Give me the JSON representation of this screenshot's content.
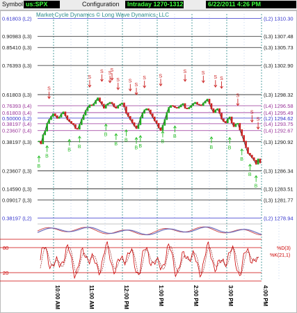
{
  "toolbar": {
    "symbol_label": "Symbol",
    "symbol_value": "us:SPX",
    "config_label": "Configuration",
    "config_value": "Intraday 1270-1312",
    "datetime_value": "6/22/2011 4:26 PM"
  },
  "watermark": "Market Cycle Dynamics © Long Wave Dynamics, LLC",
  "colors": {
    "accent_green": "#3cff3c",
    "level_blue": "#3333cc",
    "level_purple": "#993399",
    "time_teal": "#2a8a8a",
    "sell_red": "#cc2222",
    "buy_green": "#22bb22",
    "oscillator_red": "#cc0000"
  },
  "chart_data": {
    "type": "line",
    "title": "",
    "y_min": 1278.0,
    "y_max": 1311.0,
    "fib_levels": [
      {
        "left": "0.61803 (L2)",
        "right": "(L2) 1310.30",
        "price": 1310.3,
        "color": "#3333cc"
      },
      {
        "left": "0.90983 (L3)",
        "right": "(L3) 1307.48",
        "price": 1307.48,
        "color": "#222222"
      },
      {
        "left": "0.85410 (L3)",
        "right": "(L3) 1305.73",
        "price": 1305.73,
        "color": "#222222"
      },
      {
        "left": "0.76393 (L3)",
        "right": "(L3) 1302.90",
        "price": 1302.9,
        "color": "#222222"
      },
      {
        "left": "0.61803 (L3)",
        "right": "(L3) 1298.32",
        "price": 1298.32,
        "color": "#222222"
      },
      {
        "left": "0.76393 (L4)",
        "right": "(L4) 1296.58",
        "price": 1296.58,
        "color": "#993399"
      },
      {
        "left": "0.61803 (L4)",
        "right": "(L4) 1295.49",
        "price": 1295.49,
        "color": "#993399"
      },
      {
        "left": "0.50000 (L2)",
        "right": "(L2) 1294.62",
        "price": 1294.62,
        "color": "#3333cc"
      },
      {
        "left": "0.38197 (L4)",
        "right": "(L4) 1293.75",
        "price": 1293.75,
        "color": "#993399"
      },
      {
        "left": "0.23607 (L4)",
        "right": "(L4) 1292.67",
        "price": 1292.67,
        "color": "#993399"
      },
      {
        "left": "0.38197 (L3)",
        "right": "(L3) 1290.92",
        "price": 1290.92,
        "color": "#222222"
      },
      {
        "left": "0.23607 (L3)",
        "right": "(L3) 1286.34",
        "price": 1286.34,
        "color": "#222222"
      },
      {
        "left": "0.14590 (L3)",
        "right": "(L3) 1283.51",
        "price": 1283.51,
        "color": "#222222"
      },
      {
        "left": "0.09017 (L3)",
        "right": "(L3) 1281.77",
        "price": 1281.77,
        "color": "#222222"
      },
      {
        "left": "0.38197 (L2)",
        "right": "(L2) 1278.94",
        "price": 1278.94,
        "color": "#3333cc"
      }
    ],
    "time_labels": [
      "10:00 AM",
      "11:00 AM",
      "12:00 PM",
      "1:00 PM",
      "2:00 PM",
      "3:00 PM",
      "4:00 PM"
    ],
    "price_series": [
      1291.0,
      1290.6,
      1292.0,
      1292.6,
      1293.8,
      1294.4,
      1294.9,
      1295.3,
      1295.0,
      1294.6,
      1294.8,
      1295.3,
      1295.6,
      1295.0,
      1294.4,
      1294.1,
      1293.8,
      1293.6,
      1293.0,
      1292.9,
      1293.6,
      1294.4,
      1295.1,
      1295.8,
      1296.3,
      1296.7,
      1296.6,
      1296.9,
      1297.4,
      1297.8,
      1297.2,
      1296.8,
      1296.2,
      1296.7,
      1296.9,
      1297.1,
      1296.9,
      1296.4,
      1296.2,
      1296.6,
      1296.8,
      1297.0,
      1296.4,
      1295.4,
      1294.9,
      1294.4,
      1293.9,
      1293.4,
      1293.0,
      1293.6,
      1294.7,
      1295.4,
      1295.9,
      1296.1,
      1295.9,
      1295.3,
      1294.8,
      1294.2,
      1293.8,
      1293.1,
      1292.7,
      1293.5,
      1294.4,
      1295.5,
      1296.3,
      1296.6,
      1296.5,
      1296.3,
      1296.2,
      1296.4,
      1296.7,
      1296.9,
      1296.2,
      1296.1,
      1296.3,
      1296.6,
      1296.9,
      1297.1,
      1296.8,
      1296.7,
      1296.6,
      1297.0,
      1297.3,
      1297.6,
      1296.9,
      1296.1,
      1295.5,
      1295.9,
      1296.1,
      1295.4,
      1294.5,
      1294.1,
      1293.9,
      1294.5,
      1294.8,
      1293.9,
      1293.3,
      1293.7,
      1293.8,
      1292.8,
      1291.9,
      1291.0,
      1290.0,
      1289.1,
      1288.8,
      1288.4,
      1288.0,
      1287.4,
      1288.2,
      1287.6
    ],
    "sell_marks": [
      [
        5,
        1297.6
      ],
      [
        25,
        1299.4
      ],
      [
        31,
        1300.3
      ],
      [
        35,
        1300.1
      ],
      [
        36,
        1300.5
      ],
      [
        39,
        1299.0
      ],
      [
        45,
        1298.8
      ],
      [
        48,
        1298.2
      ],
      [
        52,
        1299.3
      ],
      [
        60,
        1299.6
      ],
      [
        72,
        1300.3
      ],
      [
        81,
        1300.1
      ],
      [
        87,
        1299.4
      ],
      [
        90,
        1299.2
      ],
      [
        98,
        1296.5
      ],
      [
        105,
        1293.9
      ],
      [
        108,
        1292.8
      ]
    ],
    "buy_marks": [
      [
        0,
        1288.9
      ],
      [
        4,
        1290.5
      ],
      [
        15,
        1291.5
      ],
      [
        20,
        1292.0
      ],
      [
        33,
        1293.9
      ],
      [
        38,
        1292.4
      ],
      [
        43,
        1293.0
      ],
      [
        48,
        1291.8
      ],
      [
        50,
        1292.1
      ],
      [
        61,
        1292.8
      ],
      [
        67,
        1293.6
      ],
      [
        85,
        1291.9
      ],
      [
        94,
        1291.8
      ],
      [
        100,
        1290.0
      ],
      [
        104,
        1287.6
      ],
      [
        107,
        1285.8
      ]
    ],
    "oscillator": {
      "labels": [
        "80",
        "20"
      ],
      "series_labels": [
        "%D(3)",
        "%K(21,1)"
      ]
    }
  }
}
